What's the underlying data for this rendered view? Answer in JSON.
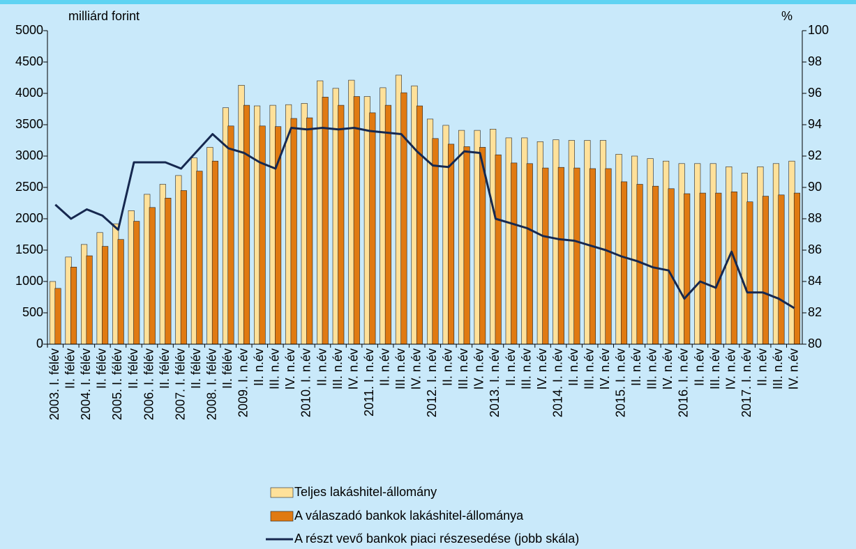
{
  "chart_data": {
    "type": "bar",
    "y_label": "milliárd forint",
    "y2_label": "%",
    "categories": [
      "2003. I. félév",
      "II. félév",
      "2004. I. félév",
      "II. félév",
      "2005. I. félév",
      "II. félév",
      "2006. I. félév",
      "II. félév",
      "2007. I. félév",
      "II. félév",
      "2008. I. félév",
      "II. félév",
      "2009. I. n.év",
      "II. n.év",
      "III. n.év",
      "IV. n.év",
      "2010. I. n.év",
      "II. n.év",
      "III. n.év",
      "IV. n.év",
      "2011. I. n.év",
      "II. n.év",
      "III. n.év",
      "IV. n.év",
      "2012. I. n.év",
      "II. n.év",
      "III. n.év",
      "IV. n.év",
      "2013. I. n.év",
      "II. n.év",
      "III. n.év",
      "IV. n.év",
      "2014. I. n.év",
      "II. n.év",
      "III. n.év",
      "IV. n.év",
      "2015. I. n.év",
      "II. n.év",
      "III. n.év",
      "IV. n.év",
      "2016. I. n.év",
      "II. n.év",
      "III. n.év",
      "IV. n.év",
      "2017. I. n.év",
      "II. n.év",
      "III. n.év",
      "IV. n.év"
    ],
    "series": [
      {
        "name": "Teljes lakáshitel-állomány",
        "type": "bar",
        "color": "#ffe19a",
        "values": [
          1000,
          1390,
          1590,
          1780,
          1920,
          2130,
          2390,
          2550,
          2690,
          2970,
          3140,
          3770,
          4130,
          3800,
          3810,
          3820,
          3840,
          4200,
          4080,
          4210,
          3950,
          4090,
          4290,
          4120,
          3590,
          3490,
          3410,
          3410,
          3430,
          3290,
          3290,
          3230,
          3260,
          3250,
          3250,
          3250,
          3030,
          3000,
          2960,
          2920,
          2880,
          2880,
          2880,
          2830,
          2730,
          2830,
          2880,
          2920
        ]
      },
      {
        "name": "A válaszadó bankok lakáshitel-állománya",
        "type": "bar",
        "color": "#e07a12",
        "values": [
          890,
          1230,
          1410,
          1560,
          1670,
          1960,
          2180,
          2330,
          2450,
          2760,
          2920,
          3480,
          3810,
          3480,
          3470,
          3600,
          3610,
          3940,
          3810,
          3950,
          3690,
          3810,
          4010,
          3800,
          3280,
          3190,
          3150,
          3140,
          3020,
          2890,
          2880,
          2810,
          2820,
          2810,
          2800,
          2800,
          2590,
          2550,
          2520,
          2480,
          2400,
          2410,
          2410,
          2430,
          2270,
          2360,
          2380,
          2410
        ]
      },
      {
        "name": "A részt vevő bankok piaci részesedése (jobb skála)",
        "type": "line",
        "axis": "y2",
        "color": "#16284f",
        "values": [
          88.9,
          88.0,
          88.6,
          88.2,
          87.3,
          91.6,
          91.6,
          91.6,
          91.2,
          92.3,
          93.4,
          92.5,
          92.2,
          91.6,
          91.2,
          93.8,
          93.7,
          93.8,
          93.7,
          93.8,
          93.6,
          93.5,
          93.4,
          92.3,
          91.4,
          91.3,
          92.3,
          92.2,
          88.0,
          87.7,
          87.4,
          86.9,
          86.7,
          86.6,
          86.3,
          86.0,
          85.6,
          85.3,
          84.9,
          84.7,
          82.9,
          84.0,
          83.6,
          85.9,
          83.3,
          83.3,
          82.9,
          82.3
        ]
      }
    ],
    "ylim": [
      0,
      5000
    ],
    "yticks": [
      0,
      500,
      1000,
      1500,
      2000,
      2500,
      3000,
      3500,
      4000,
      4500,
      5000
    ],
    "y2lim": [
      80,
      100
    ],
    "y2ticks": [
      80,
      82,
      84,
      86,
      88,
      90,
      92,
      94,
      96,
      98,
      100
    ],
    "grid": false,
    "legend": "bottom"
  }
}
